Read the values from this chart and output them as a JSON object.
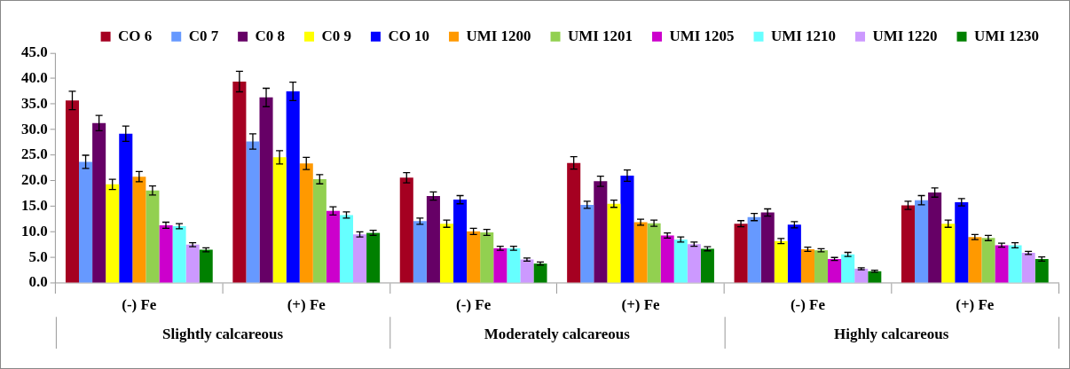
{
  "chart_data": {
    "type": "bar",
    "categories": [
      "(-) Fe",
      "(+) Fe",
      "(-) Fe",
      "(+) Fe",
      "(-) Fe",
      "(+) Fe"
    ],
    "annotations": [
      "Slightly calcareous",
      "Moderately calcareous",
      "Highly calcareous"
    ],
    "ylim": [
      0,
      45
    ],
    "yticks": [
      {
        "value": 0,
        "label": "0.0"
      },
      {
        "value": 5,
        "label": "5.0"
      },
      {
        "value": 10,
        "label": "10.0"
      },
      {
        "value": 15,
        "label": "15.0"
      },
      {
        "value": 20,
        "label": "20.0"
      },
      {
        "value": 25,
        "label": "25.0"
      },
      {
        "value": 30,
        "label": "30.0"
      },
      {
        "value": 35,
        "label": "35.0"
      },
      {
        "value": 40,
        "label": "40.0"
      },
      {
        "value": 45,
        "label": "45.0"
      }
    ],
    "grid": false,
    "legend": "top right",
    "series": [
      {
        "name": "CO 6",
        "color": "#a50021",
        "values": [
          35.7,
          39.4,
          20.6,
          23.5,
          11.6,
          15.2
        ],
        "errors": [
          1.8,
          2.0,
          1.0,
          1.2,
          0.6,
          0.8
        ]
      },
      {
        "name": "C0 7",
        "color": "#6699ff",
        "values": [
          23.7,
          27.7,
          12.1,
          15.3,
          12.9,
          16.2
        ],
        "errors": [
          1.3,
          1.5,
          0.6,
          0.7,
          0.7,
          0.9
        ]
      },
      {
        "name": "C0 8",
        "color": "#660066",
        "values": [
          31.3,
          36.3,
          17.0,
          19.9,
          13.8,
          17.7
        ],
        "errors": [
          1.5,
          1.8,
          0.8,
          1.0,
          0.7,
          0.9
        ]
      },
      {
        "name": "C0 9",
        "color": "#ffff00",
        "values": [
          19.3,
          24.6,
          11.6,
          15.5,
          8.2,
          11.6
        ],
        "errors": [
          1.0,
          1.3,
          0.7,
          0.7,
          0.5,
          0.7
        ]
      },
      {
        "name": "CO 10",
        "color": "#0000ff",
        "values": [
          29.2,
          37.5,
          16.3,
          21.0,
          11.4,
          15.8
        ],
        "errors": [
          1.5,
          1.8,
          0.8,
          1.1,
          0.6,
          0.7
        ]
      },
      {
        "name": "UMI 1200",
        "color": "#ff9900",
        "values": [
          20.8,
          23.4,
          10.1,
          11.9,
          6.6,
          9.0
        ],
        "errors": [
          1.0,
          1.2,
          0.6,
          0.6,
          0.4,
          0.5
        ]
      },
      {
        "name": "UMI 1201",
        "color": "#92d050",
        "values": [
          18.1,
          20.3,
          9.9,
          11.7,
          6.4,
          8.8
        ],
        "errors": [
          0.9,
          0.9,
          0.6,
          0.6,
          0.3,
          0.5
        ]
      },
      {
        "name": "UMI 1205",
        "color": "#cc00cc",
        "values": [
          11.3,
          14.1,
          6.8,
          9.3,
          4.7,
          7.4
        ],
        "errors": [
          0.6,
          0.8,
          0.4,
          0.5,
          0.3,
          0.4
        ]
      },
      {
        "name": "UMI 1210",
        "color": "#66ffff",
        "values": [
          11.1,
          13.3,
          6.8,
          8.5,
          5.6,
          7.4
        ],
        "errors": [
          0.5,
          0.6,
          0.4,
          0.5,
          0.4,
          0.5
        ]
      },
      {
        "name": "UMI 1220",
        "color": "#cc99ff",
        "values": [
          7.5,
          9.5,
          4.6,
          7.6,
          2.8,
          5.9
        ],
        "errors": [
          0.4,
          0.5,
          0.3,
          0.4,
          0.2,
          0.3
        ]
      },
      {
        "name": "UMI 1230",
        "color": "#008000",
        "values": [
          6.5,
          9.8,
          3.8,
          6.7,
          2.3,
          4.7
        ],
        "errors": [
          0.4,
          0.5,
          0.3,
          0.4,
          0.2,
          0.4
        ]
      }
    ]
  }
}
